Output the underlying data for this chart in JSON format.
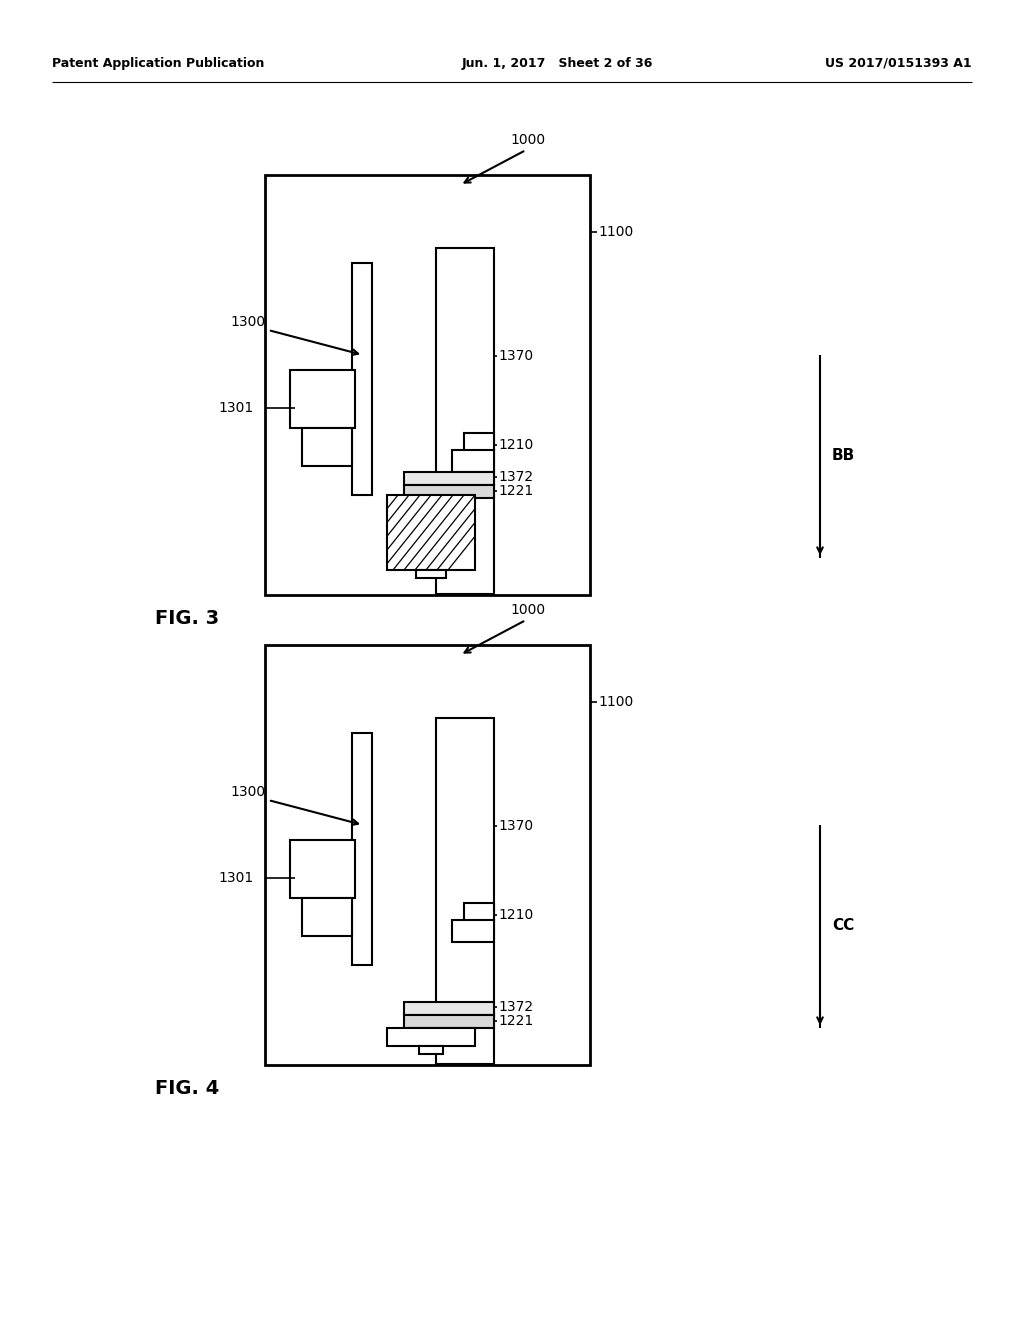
{
  "bg_color": "#ffffff",
  "header_left": "Patent Application Publication",
  "header_center": "Jun. 1, 2017   Sheet 2 of 36",
  "header_right": "US 2017/0151393 A1",
  "fig3_label": "FIG. 3",
  "fig4_label": "FIG. 4",
  "lw_outer": 2.0,
  "lw_inner": 1.5
}
